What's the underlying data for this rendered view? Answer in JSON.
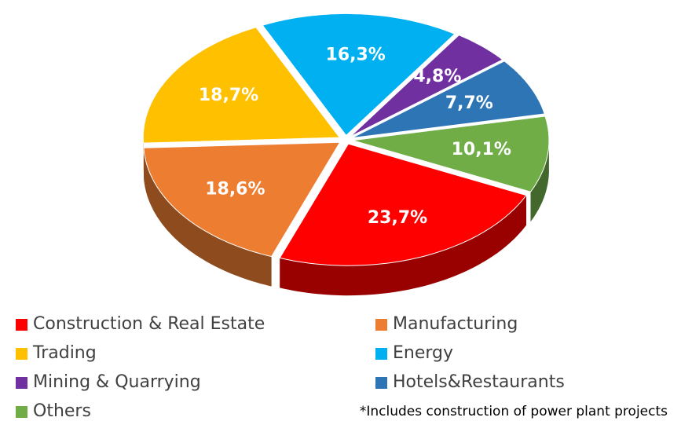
{
  "chart_data": {
    "type": "pie",
    "categories": [
      "Construction & Real Estate",
      "Manufacturing",
      "Trading",
      "Energy",
      "Mining & Quarrying",
      "Hotels&Restaurants",
      "Others"
    ],
    "values": [
      23.7,
      18.6,
      18.7,
      16.3,
      4.8,
      7.7,
      10.1
    ],
    "value_labels": [
      "23,7%",
      "18,6%",
      "18,7%",
      "16,3%",
      "4,8%",
      "7,7%",
      "10,1%"
    ],
    "colors": [
      "#ff0000",
      "#ed7d31",
      "#ffc000",
      "#00b0f0",
      "#7030a0",
      "#2e75b6",
      "#70ad47"
    ],
    "note": "*Includes construction of power plant projects"
  }
}
